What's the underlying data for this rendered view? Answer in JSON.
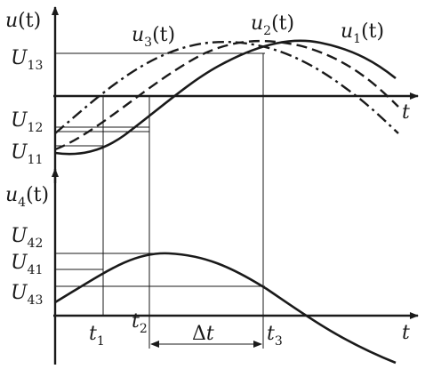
{
  "upper_plot": {
    "y_axis_label": {
      "main": "u",
      "arg": "(t)"
    },
    "x_axis_label": "t",
    "curves": [
      {
        "name": "u",
        "sub": "1",
        "arg": "(t)",
        "style": "solid"
      },
      {
        "name": "u",
        "sub": "2",
        "arg": "(t)",
        "style": "dashed"
      },
      {
        "name": "u",
        "sub": "3",
        "arg": "(t)",
        "style": "dash-dot"
      }
    ],
    "levels": [
      {
        "name": "U",
        "sub": "13"
      },
      {
        "name": "U",
        "sub": "12"
      },
      {
        "name": "U",
        "sub": "11"
      }
    ]
  },
  "lower_plot": {
    "y_axis_label": {
      "main": "u",
      "sub": "4",
      "arg": "(t)"
    },
    "x_axis_label": "t",
    "levels": [
      {
        "name": "U",
        "sub": "42"
      },
      {
        "name": "U",
        "sub": "41"
      },
      {
        "name": "U",
        "sub": "43"
      }
    ],
    "time_marks": [
      {
        "name": "t",
        "sub": "1"
      },
      {
        "name": "t",
        "sub": "2"
      },
      {
        "name": "t",
        "sub": "3"
      }
    ],
    "interval": {
      "symbol": "Δ",
      "var": "t"
    }
  }
}
